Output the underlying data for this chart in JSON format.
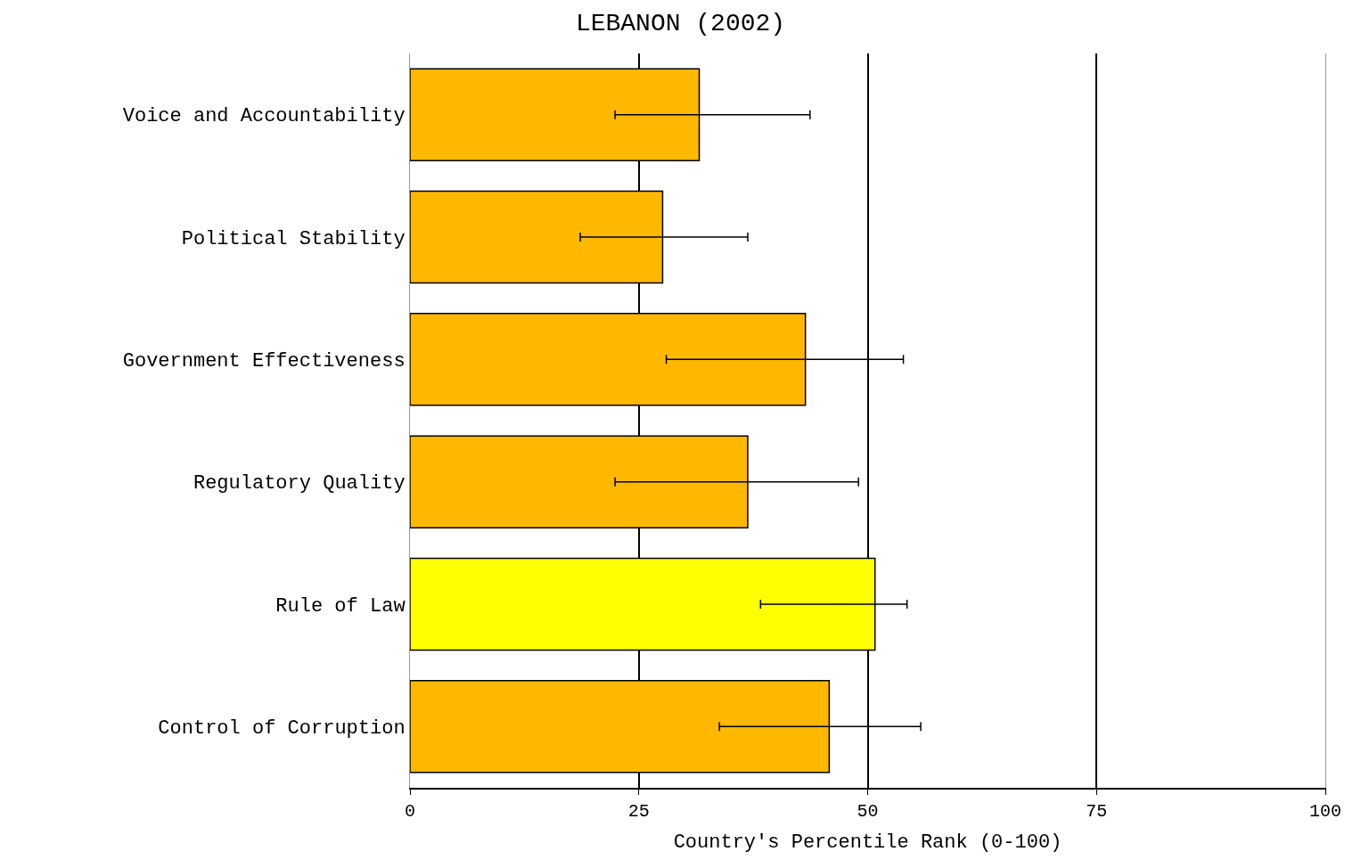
{
  "chart_data": {
    "type": "bar",
    "orientation": "horizontal",
    "title": "LEBANON (2002)",
    "xlabel": "Country's Percentile Rank (0-100)",
    "categories": [
      "Voice and Accountability",
      "Political Stability",
      "Government Effectiveness",
      "Regulatory Quality",
      "Rule of Law",
      "Control of Corruption"
    ],
    "values": [
      31.6,
      27.6,
      43.2,
      36.9,
      50.8,
      45.8
    ],
    "colors": [
      "#ffb800",
      "#ffb800",
      "#ffb800",
      "#ffb800",
      "#ffff00",
      "#ffb800"
    ],
    "errors": [
      [
        22.4,
        43.7
      ],
      [
        18.6,
        36.9
      ],
      [
        28.0,
        53.9
      ],
      [
        22.4,
        49.0
      ],
      [
        38.3,
        54.3
      ],
      [
        33.8,
        55.8
      ]
    ],
    "xlim": [
      0,
      100
    ],
    "xticks": [
      0,
      25,
      50,
      75,
      100
    ],
    "grid": "x"
  }
}
